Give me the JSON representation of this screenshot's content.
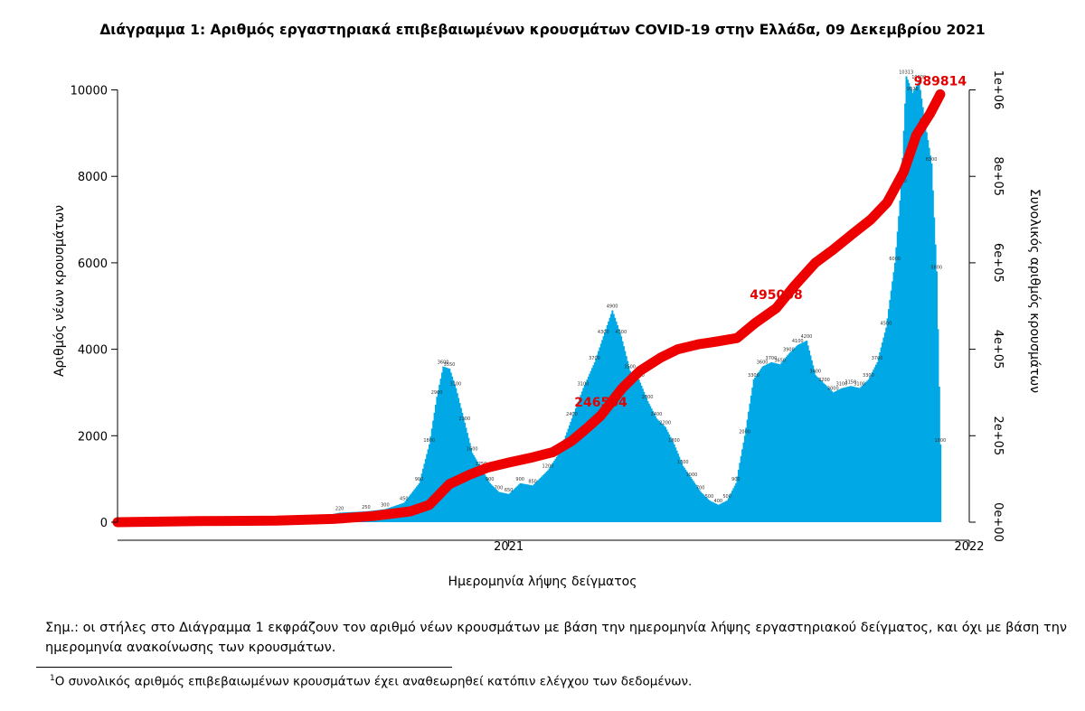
{
  "header": {
    "title": "Διάγραμμα 1: Αριθμός εργαστηριακά επιβεβαιωμένων κρουσμάτων COVID-19 στην Ελλάδα, 09 Δεκεμβρίου 2021"
  },
  "notes": {
    "note": "Σημ.: οι στήλες στο Διάγραμμα 1 εκφράζουν τον αριθμό νέων κρουσμάτων με βάση την ημερομηνία λήψης εργαστηριακού δείγματος, και όχι με βάση την ημερομηνία ανακοίνωσης των κρουσμάτων.",
    "footnote_mark": "1",
    "footnote": "Ο συνολικός αριθμός επιβεβαιωμένων κρουσμάτων έχει αναθεωρηθεί κατόπιν ελέγχου των δεδομένων."
  },
  "colors": {
    "bars": "#00a9e6",
    "cumulative_line": "#ee0000",
    "annotation": "#e30000"
  },
  "chart_data": {
    "type": "bar",
    "title": "Διάγραμμα 1: Αριθμός εργαστηριακά επιβεβαιωμένων κρουσμάτων COVID-19 στην Ελλάδα, 09 Δεκεμβρίου 2021",
    "xlabel": "Ημερομηνία λήψης δείγματος",
    "ylabel": "Αριθμός νέων κρουσμάτων",
    "y2label": "Συνολικός αριθμός κρουσμάτων",
    "x_ticks": [
      "2021",
      "2022"
    ],
    "x_tick_dates": [
      "2021-01-01",
      "2022-01-01"
    ],
    "xlim": [
      "2020-02-26",
      "2022-01-01"
    ],
    "ylim": [
      0,
      10700
    ],
    "y_ticks": [
      0,
      2000,
      4000,
      6000,
      8000,
      10000
    ],
    "y_tick_labels": [
      "0",
      "2000",
      "4000",
      "6000",
      "8000",
      "10000"
    ],
    "y2lim": [
      0,
      1070000
    ],
    "y2_ticks": [
      0,
      200000,
      400000,
      600000,
      800000,
      1000000
    ],
    "y2_tick_labels": [
      "0e+00",
      "2e+05",
      "4e+05",
      "6e+05",
      "8e+05",
      "1e+06"
    ],
    "grid": false,
    "series": [
      {
        "name": "Νέα κρούσματα",
        "kind": "bar",
        "points": [
          [
            "2020-02-26",
            0
          ],
          [
            "2020-03-20",
            80
          ],
          [
            "2020-04-10",
            60
          ],
          [
            "2020-05-10",
            15
          ],
          [
            "2020-06-15",
            15
          ],
          [
            "2020-07-15",
            30
          ],
          [
            "2020-08-01",
            110
          ],
          [
            "2020-08-20",
            220
          ],
          [
            "2020-09-10",
            250
          ],
          [
            "2020-09-25",
            300
          ],
          [
            "2020-10-10",
            450
          ],
          [
            "2020-10-22",
            900
          ],
          [
            "2020-10-30",
            1800
          ],
          [
            "2020-11-05",
            2900
          ],
          [
            "2020-11-10",
            3600
          ],
          [
            "2020-11-15",
            3550
          ],
          [
            "2020-11-20",
            3100
          ],
          [
            "2020-11-27",
            2300
          ],
          [
            "2020-12-03",
            1600
          ],
          [
            "2020-12-10",
            1250
          ],
          [
            "2020-12-17",
            900
          ],
          [
            "2020-12-24",
            700
          ],
          [
            "2021-01-01",
            650
          ],
          [
            "2021-01-10",
            900
          ],
          [
            "2021-01-20",
            850
          ],
          [
            "2021-02-01",
            1200
          ],
          [
            "2021-02-10",
            1600
          ],
          [
            "2021-02-20",
            2400
          ],
          [
            "2021-03-01",
            3100
          ],
          [
            "2021-03-10",
            3700
          ],
          [
            "2021-03-17",
            4300
          ],
          [
            "2021-03-24",
            4900
          ],
          [
            "2021-03-31",
            4300
          ],
          [
            "2021-04-07",
            3500
          ],
          [
            "2021-04-14",
            3300
          ],
          [
            "2021-04-21",
            2800
          ],
          [
            "2021-04-28",
            2400
          ],
          [
            "2021-05-05",
            2200
          ],
          [
            "2021-05-12",
            1800
          ],
          [
            "2021-05-19",
            1300
          ],
          [
            "2021-05-26",
            1000
          ],
          [
            "2021-06-02",
            700
          ],
          [
            "2021-06-09",
            500
          ],
          [
            "2021-06-16",
            400
          ],
          [
            "2021-06-23",
            500
          ],
          [
            "2021-06-30",
            900
          ],
          [
            "2021-07-07",
            2000
          ],
          [
            "2021-07-14",
            3300
          ],
          [
            "2021-07-21",
            3600
          ],
          [
            "2021-07-28",
            3700
          ],
          [
            "2021-08-04",
            3650
          ],
          [
            "2021-08-11",
            3900
          ],
          [
            "2021-08-18",
            4100
          ],
          [
            "2021-08-25",
            4200
          ],
          [
            "2021-09-01",
            3400
          ],
          [
            "2021-09-08",
            3200
          ],
          [
            "2021-09-15",
            3000
          ],
          [
            "2021-09-22",
            3100
          ],
          [
            "2021-09-29",
            3150
          ],
          [
            "2021-10-06",
            3100
          ],
          [
            "2021-10-13",
            3300
          ],
          [
            "2021-10-20",
            3700
          ],
          [
            "2021-10-27",
            4500
          ],
          [
            "2021-11-03",
            6000
          ],
          [
            "2021-11-08",
            7800
          ],
          [
            "2021-11-12",
            10313
          ],
          [
            "2021-11-17",
            9926
          ],
          [
            "2021-11-22",
            10200
          ],
          [
            "2021-11-27",
            9200
          ],
          [
            "2021-12-02",
            8300
          ],
          [
            "2021-12-06",
            5800
          ],
          [
            "2021-12-09",
            1800
          ]
        ]
      },
      {
        "name": "Συνολικός αριθμός κρουσμάτων",
        "kind": "line",
        "axis": "y2",
        "points": [
          [
            "2020-02-26",
            0
          ],
          [
            "2020-05-01",
            2600
          ],
          [
            "2020-07-01",
            3500
          ],
          [
            "2020-08-15",
            7500
          ],
          [
            "2020-09-15",
            14000
          ],
          [
            "2020-10-15",
            25000
          ],
          [
            "2020-10-30",
            40000
          ],
          [
            "2020-11-15",
            88000
          ],
          [
            "2020-12-01",
            110000
          ],
          [
            "2020-12-15",
            126000
          ],
          [
            "2021-01-01",
            138000
          ],
          [
            "2021-01-20",
            150000
          ],
          [
            "2021-02-05",
            162000
          ],
          [
            "2021-02-20",
            188000
          ],
          [
            "2021-03-05",
            220000
          ],
          [
            "2021-03-15",
            246500
          ],
          [
            "2021-04-01",
            310000
          ],
          [
            "2021-04-15",
            350000
          ],
          [
            "2021-05-01",
            380000
          ],
          [
            "2021-05-15",
            400000
          ],
          [
            "2021-06-01",
            412000
          ],
          [
            "2021-06-15",
            418000
          ],
          [
            "2021-07-01",
            426000
          ],
          [
            "2021-07-15",
            460000
          ],
          [
            "2021-08-01",
            495000
          ],
          [
            "2021-08-15",
            545000
          ],
          [
            "2021-09-01",
            600000
          ],
          [
            "2021-09-15",
            630000
          ],
          [
            "2021-10-01",
            668000
          ],
          [
            "2021-10-15",
            700000
          ],
          [
            "2021-10-28",
            740000
          ],
          [
            "2021-11-10",
            810000
          ],
          [
            "2021-11-20",
            895000
          ],
          [
            "2021-12-01",
            945000
          ],
          [
            "2021-12-09",
            989814
          ]
        ]
      }
    ],
    "annotations": [
      {
        "text": "246504",
        "x": "2021-03-15",
        "y": 246504,
        "axis": "y2"
      },
      {
        "text": "495008",
        "x": "2021-08-01",
        "y": 495008,
        "axis": "y2"
      },
      {
        "text": "989814",
        "x": "2021-12-09",
        "y": 989814,
        "axis": "y2"
      }
    ]
  }
}
